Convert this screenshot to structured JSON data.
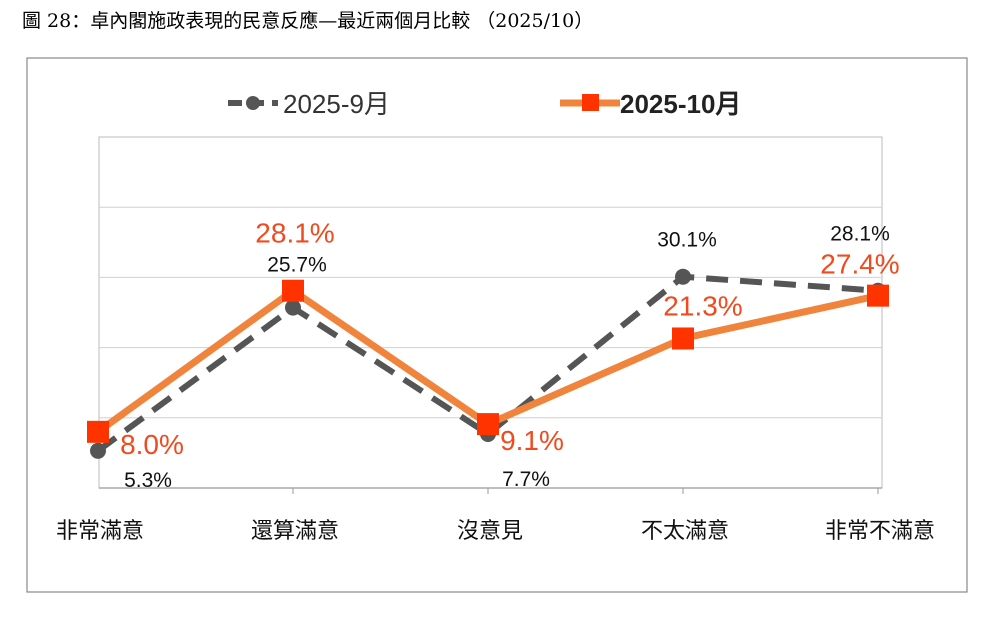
{
  "title": "圖 28：卓內閣施政表現的民意反應—最近兩個月比較 （2025/10）",
  "chart_data": {
    "type": "line",
    "categories": [
      "非常滿意",
      "還算滿意",
      "沒意見",
      "不太滿意",
      "非常不滿意"
    ],
    "series": [
      {
        "name": "2025-9月",
        "values": [
          5.3,
          25.7,
          7.7,
          30.1,
          28.1
        ],
        "labels": [
          "5.3%",
          "25.7%",
          "7.7%",
          "30.1%",
          "28.1%"
        ],
        "color": "#555555",
        "style": "dashed",
        "marker": "circle"
      },
      {
        "name": "2025-10月",
        "values": [
          8.0,
          28.1,
          9.1,
          21.3,
          27.4
        ],
        "labels": [
          "8.0%",
          "28.1%",
          "9.1%",
          "21.3%",
          "27.4%"
        ],
        "color": "#F0843C",
        "marker_color": "#FF3300",
        "label_color": "#F04A1E",
        "style": "solid",
        "marker": "square"
      }
    ],
    "ylim": [
      0,
      50
    ],
    "y_gridlines": [
      10,
      20,
      30,
      40
    ],
    "grid": true,
    "legend": "top",
    "xlabel": "",
    "ylabel": ""
  }
}
